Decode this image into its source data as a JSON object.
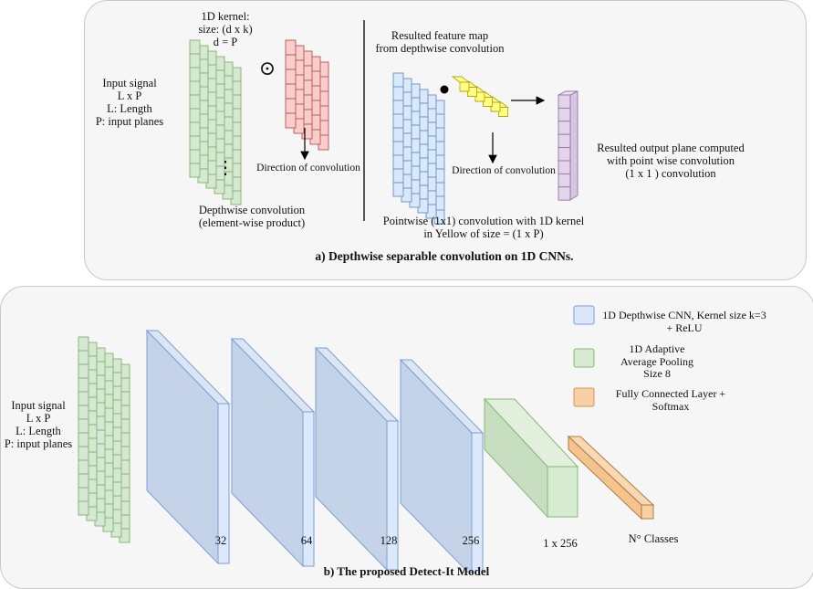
{
  "panel_a": {
    "caption": "a) Depthwise separable convolution on 1D CNNs.",
    "input_signal": [
      "Input signal",
      "L x P",
      "L: Length",
      "P: input planes"
    ],
    "kernel_label": [
      "1D kernel:",
      "size: (d x k)",
      "d = P"
    ],
    "direction_label_1": "Direction of convolution",
    "depthwise_label": [
      "Depthwise convolution",
      "(element-wise product)"
    ],
    "feature_map_label": [
      "Resulted feature map",
      "from depthwise convolution"
    ],
    "direction_label_2": "Direction of convolution",
    "pointwise_label": [
      "Pointwise (1x1) convolution with 1D kernel",
      "in Yellow of size = (1 x P)"
    ],
    "output_label": [
      "Resulted output plane computed",
      "with point wise convolution",
      "(1 x 1 ) convolution"
    ],
    "ellipsis": "⋮",
    "odot": "⊙"
  },
  "panel_b": {
    "caption": "b) The proposed Detect‑It Model",
    "input_signal": [
      "Input signal",
      "L x P",
      "L: Length",
      "P: input planes"
    ],
    "layer_sizes": [
      "32",
      "64",
      "128",
      "256"
    ],
    "pool_size": "1 x 256",
    "classes": "N° Classes",
    "legend": [
      {
        "label": [
          "1D Depthwise CNN, Kernel size k=3",
          "+ ReLU"
        ],
        "color": "#dbe8fc",
        "border": "#7c9fd6"
      },
      {
        "label": [
          "1D Adaptive",
          "Average Pooling",
          "Size 8"
        ],
        "color": "#d6ead0",
        "border": "#86b97a"
      },
      {
        "label": [
          "Fully Connected  Layer +",
          "Softmax"
        ],
        "color": "#f8d0a6",
        "border": "#d39655"
      }
    ]
  },
  "colors": {
    "input_green": "#d5e8d4",
    "input_green_border": "#82b366",
    "kernel_red": "#f8cecc",
    "kernel_red_border": "#b85450",
    "feature_blue": "#dae8fc",
    "feature_blue_border": "#6c8ebf",
    "yellow": "#ffff88",
    "yellow_border": "#b6a800",
    "output_purple": "#e1d5e7",
    "output_purple_border": "#9673a6",
    "cnn_face": "#c5d3e8",
    "cnn_top": "#dbe5f4",
    "cnn_side": "#dce8fb",
    "pool_face": "#c7dfc0",
    "fc_face": "#f4c48e"
  }
}
